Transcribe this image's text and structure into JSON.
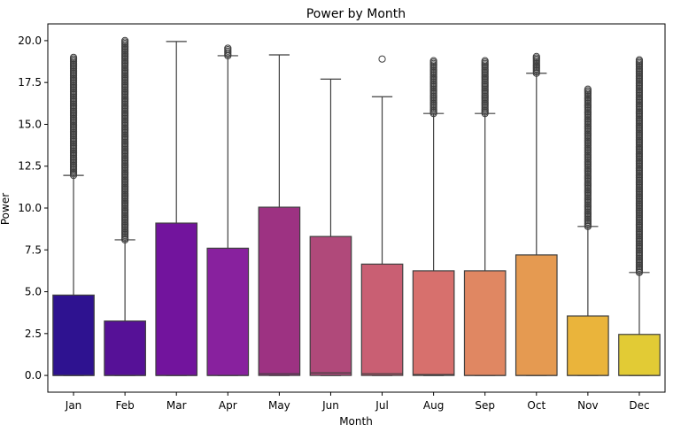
{
  "chart_data": {
    "type": "box",
    "title": "Power by Month",
    "xlabel": "Month",
    "ylabel": "Power",
    "ylim": [
      -1.0,
      21.0
    ],
    "yticks": [
      0.0,
      2.5,
      5.0,
      7.5,
      10.0,
      12.5,
      15.0,
      17.5,
      20.0
    ],
    "ytick_labels": [
      "0.0",
      "2.5",
      "5.0",
      "7.5",
      "10.0",
      "12.5",
      "15.0",
      "17.5",
      "20.0"
    ],
    "grid": false,
    "categories": [
      "Jan",
      "Feb",
      "Mar",
      "Apr",
      "May",
      "Jun",
      "Jul",
      "Aug",
      "Sep",
      "Oct",
      "Nov",
      "Dec"
    ],
    "boxes": [
      {
        "q1": 0.0,
        "median": 0.0,
        "q3": 4.8,
        "whisker_low": 0.0,
        "whisker_high": 11.95,
        "outlier_range": [
          11.95,
          19.0
        ],
        "color": "#2e1290"
      },
      {
        "q1": 0.0,
        "median": 0.0,
        "q3": 3.25,
        "whisker_low": 0.0,
        "whisker_high": 8.1,
        "outlier_range": [
          8.1,
          20.0
        ],
        "color": "#561197"
      },
      {
        "q1": 0.0,
        "median": 0.0,
        "q3": 9.1,
        "whisker_low": 0.0,
        "whisker_high": 19.95,
        "outlier_range": null,
        "color": "#72149d"
      },
      {
        "q1": 0.0,
        "median": 0.0,
        "q3": 7.6,
        "whisker_low": 0.0,
        "whisker_high": 19.1,
        "outlier_range": [
          19.1,
          19.55
        ],
        "color": "#88219e"
      },
      {
        "q1": 0.0,
        "median": 0.1,
        "q3": 10.05,
        "whisker_low": 0.0,
        "whisker_high": 19.15,
        "outlier_range": null,
        "color": "#9d3282"
      },
      {
        "q1": 0.0,
        "median": 0.15,
        "q3": 8.3,
        "whisker_low": 0.0,
        "whisker_high": 17.7,
        "outlier_range": null,
        "color": "#b0497a"
      },
      {
        "q1": 0.0,
        "median": 0.1,
        "q3": 6.65,
        "whisker_low": 0.0,
        "whisker_high": 16.65,
        "outlier_range": [
          18.9,
          18.9
        ],
        "color": "#c95f73"
      },
      {
        "q1": 0.0,
        "median": 0.05,
        "q3": 6.25,
        "whisker_low": 0.0,
        "whisker_high": 15.65,
        "outlier_range": [
          15.65,
          18.8
        ],
        "color": "#d7706d"
      },
      {
        "q1": 0.0,
        "median": 0.0,
        "q3": 6.25,
        "whisker_low": 0.0,
        "whisker_high": 15.65,
        "outlier_range": [
          15.65,
          18.8
        ],
        "color": "#e08762"
      },
      {
        "q1": 0.0,
        "median": 0.0,
        "q3": 7.2,
        "whisker_low": 0.0,
        "whisker_high": 18.05,
        "outlier_range": [
          18.05,
          19.05
        ],
        "color": "#e59a51"
      },
      {
        "q1": 0.0,
        "median": 0.0,
        "q3": 3.55,
        "whisker_low": 0.0,
        "whisker_high": 8.9,
        "outlier_range": [
          8.9,
          17.1
        ],
        "color": "#eab43b"
      },
      {
        "q1": 0.0,
        "median": 0.0,
        "q3": 2.45,
        "whisker_low": 0.0,
        "whisker_high": 6.15,
        "outlier_range": [
          6.15,
          18.85
        ],
        "color": "#e2cb35"
      }
    ]
  }
}
